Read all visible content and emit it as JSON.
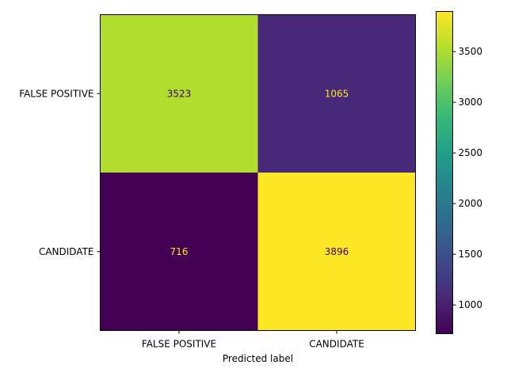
{
  "chart_data": {
    "type": "heatmap",
    "title": "",
    "xlabel": "Predicted label",
    "ylabel": "",
    "x_categories": [
      "FALSE POSITIVE",
      "CANDIDATE"
    ],
    "y_categories": [
      "FALSE POSITIVE",
      "CANDIDATE"
    ],
    "matrix": [
      [
        3523,
        1065
      ],
      [
        716,
        3896
      ]
    ],
    "colormap": "viridis",
    "colorbar": {
      "range": [
        716,
        3896
      ],
      "ticks": [
        1000,
        1500,
        2000,
        2500,
        3000,
        3500
      ],
      "tick_labels": [
        "1000",
        "1500",
        "2000",
        "2500",
        "3000",
        "3500"
      ]
    },
    "text_colors": {
      "dark": "#440154",
      "light": "#fde725"
    }
  }
}
